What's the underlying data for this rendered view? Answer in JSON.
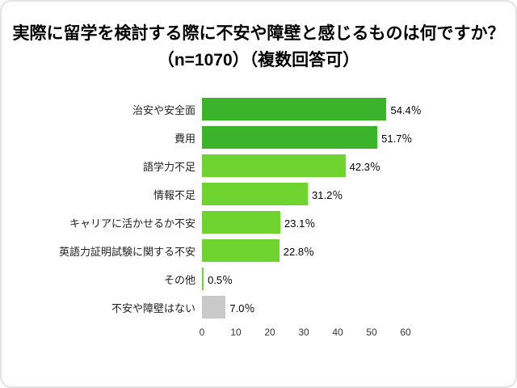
{
  "title": {
    "line1": "実際に留学を検討する際に不安や障壁と感じるものは何ですか？",
    "line2": "（n=1070）（複数回答可）"
  },
  "chart_data": {
    "type": "bar",
    "orientation": "horizontal",
    "title": "実際に留学を検討する際に不安や障壁と感じるものは何ですか？（n=1070）（複数回答可）",
    "categories": [
      "治安や安全面",
      "費用",
      "語学力不足",
      "情報不足",
      "キャリアに活かせるか不安",
      "英語力証明試験に関する不安",
      "その他",
      "不安や障壁はない"
    ],
    "values": [
      54.4,
      51.7,
      42.3,
      31.2,
      23.1,
      22.8,
      0.5,
      7.0
    ],
    "value_labels": [
      "54.4％",
      "51.7％",
      "42.3％",
      "31.2％",
      "23.1％",
      "22.8％",
      "0.5％",
      "7.0％"
    ],
    "bar_colors": [
      "#3bb32a",
      "#3bb32a",
      "#6fd42f",
      "#6fd42f",
      "#6fd42f",
      "#6fd42f",
      "#6fd42f",
      "#c9c9c9"
    ],
    "xlabel": "",
    "ylabel": "",
    "xlim": [
      0,
      60
    ],
    "xticks": [
      0,
      10,
      20,
      30,
      40,
      50,
      60
    ],
    "grid": false,
    "legend": "none"
  },
  "layout_colors": {
    "background": "#ffffff",
    "border": "#e3e3e3",
    "text": "#000000"
  }
}
